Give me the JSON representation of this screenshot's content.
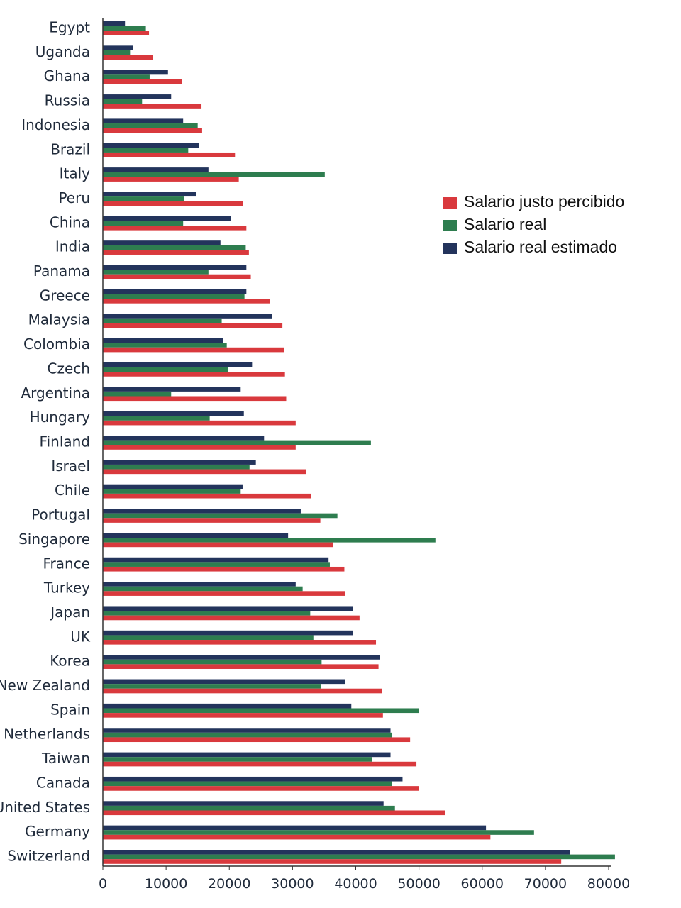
{
  "chart_data": {
    "type": "bar",
    "orientation": "horizontal",
    "title": "",
    "xlabel": "",
    "ylabel": "",
    "xlim": [
      0,
      80000
    ],
    "x_ticks": [
      "0",
      "10000",
      "20000",
      "30000",
      "40000",
      "50000",
      "60000",
      "70000",
      "80000"
    ],
    "grid": false,
    "legend_position": "right",
    "categories": [
      "Egypt",
      "Uganda",
      "Ghana",
      "Russia",
      "Indonesia",
      "Brazil",
      "Italy",
      "Peru",
      "China",
      "India",
      "Panama",
      "Greece",
      "Malaysia",
      "Colombia",
      "Czech",
      "Argentina",
      "Hungary",
      "Finland",
      "Israel",
      "Chile",
      "Portugal",
      "Singapore",
      "France",
      "Turkey",
      "Japan",
      "UK",
      "Korea",
      "New Zealand",
      "Spain",
      "Netherlands",
      "Taiwan",
      "Canada",
      "United States",
      "Germany",
      "Switzerland"
    ],
    "series": [
      {
        "name": "Salario real estimado",
        "color": "#23345c",
        "values": [
          3500,
          4800,
          10300,
          10800,
          12700,
          15200,
          16700,
          14700,
          20200,
          18600,
          22700,
          22700,
          26800,
          19000,
          23600,
          21800,
          22300,
          25500,
          24200,
          22100,
          31300,
          29300,
          35700,
          30500,
          39600,
          39600,
          43800,
          38300,
          39300,
          45500,
          45500,
          47400,
          44400,
          60600,
          73900
        ]
      },
      {
        "name": "Salario real",
        "color": "#2e7d4f",
        "values": [
          6800,
          4300,
          7400,
          6200,
          15000,
          13500,
          35100,
          12800,
          12700,
          22600,
          16700,
          22400,
          18800,
          19600,
          19800,
          10800,
          16900,
          42400,
          23200,
          21800,
          37100,
          52600,
          35900,
          31600,
          32800,
          33300,
          34600,
          34500,
          50000,
          45700,
          42600,
          45700,
          46200,
          68200,
          81000
        ]
      },
      {
        "name": "Salario justo percibido",
        "color": "#d9393d",
        "values": [
          7300,
          7900,
          12500,
          15600,
          15700,
          20900,
          21500,
          22200,
          22700,
          23100,
          23400,
          26400,
          28400,
          28700,
          28800,
          29000,
          30500,
          30500,
          32100,
          32900,
          34400,
          36400,
          38200,
          38300,
          40600,
          43200,
          43600,
          44200,
          44300,
          48600,
          49600,
          50000,
          54100,
          61300,
          72500
        ]
      }
    ]
  }
}
